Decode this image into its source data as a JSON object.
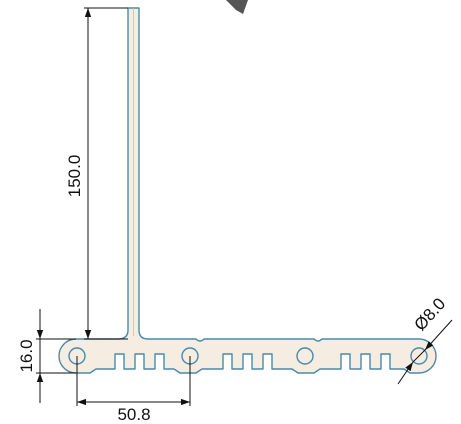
{
  "drawing": {
    "dimensions": {
      "height_label": "150.0",
      "thickness_label": "16.0",
      "pitch_label": "50.8",
      "hole_label": "Ø8.0"
    },
    "colors": {
      "part_fill": "#f5ede1",
      "part_stroke": "#4a8aaa",
      "dim_line": "#111111"
    }
  }
}
